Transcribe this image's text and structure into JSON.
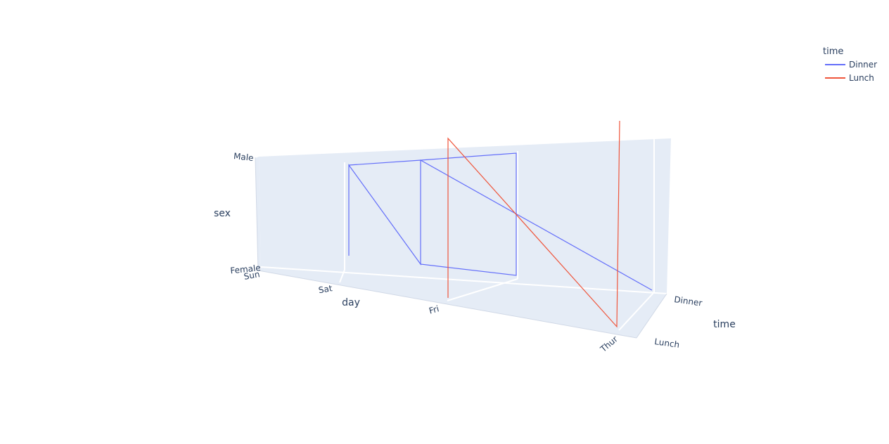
{
  "chart_data": {
    "type": "line",
    "subtype": "3d",
    "axes": {
      "x": {
        "title": "day",
        "ticks": [
          "Sun",
          "Sat",
          "Fri",
          "Thur"
        ]
      },
      "y": {
        "title": "time",
        "ticks": [
          "Dinner",
          "Lunch"
        ]
      },
      "z": {
        "title": "sex",
        "ticks": [
          "Female",
          "Male"
        ]
      }
    },
    "legend": {
      "title": "time",
      "position": "top-right",
      "entries": [
        {
          "name": "Dinner",
          "color": "#636efa"
        },
        {
          "name": "Lunch",
          "color": "#ef553b"
        }
      ]
    },
    "series": [
      {
        "name": "Dinner",
        "color": "#636efa",
        "points": [
          {
            "day": "Sun",
            "time": "Dinner",
            "sex": "Female"
          },
          {
            "day": "Sun",
            "time": "Dinner",
            "sex": "Male"
          },
          {
            "day": "Sat",
            "time": "Dinner",
            "sex": "Female"
          },
          {
            "day": "Sat",
            "time": "Dinner",
            "sex": "Male"
          },
          {
            "day": "Sun",
            "time": "Dinner",
            "sex": "Male"
          },
          {
            "day": "Sat",
            "time": "Dinner",
            "sex": "Male"
          },
          {
            "day": "Thur",
            "time": "Dinner",
            "sex": "Female"
          },
          {
            "day": "Sat",
            "time": "Dinner",
            "sex": "Male"
          },
          {
            "day": "Sat",
            "time": "Dinner",
            "sex": "Female"
          },
          {
            "day": "Fri",
            "time": "Dinner",
            "sex": "Female"
          },
          {
            "day": "Fri",
            "time": "Dinner",
            "sex": "Male"
          },
          {
            "day": "Sat",
            "time": "Dinner",
            "sex": "Male"
          }
        ]
      },
      {
        "name": "Lunch",
        "color": "#ef553b",
        "points": [
          {
            "day": "Fri",
            "time": "Lunch",
            "sex": "Female"
          },
          {
            "day": "Fri",
            "time": "Lunch",
            "sex": "Male"
          },
          {
            "day": "Thur",
            "time": "Lunch",
            "sex": "Female"
          },
          {
            "day": "Thur",
            "time": "Lunch",
            "sex": "Male"
          }
        ]
      }
    ]
  }
}
